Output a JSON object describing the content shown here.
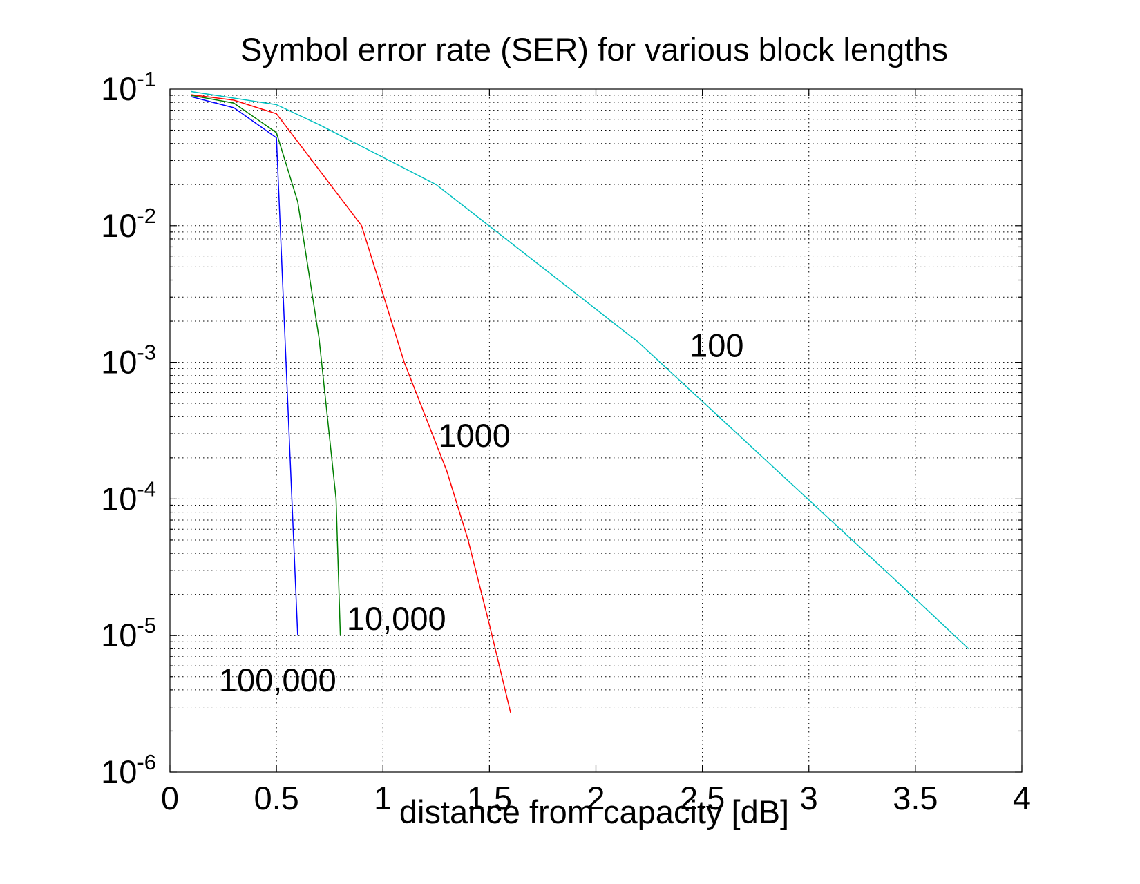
{
  "chart_data": {
    "type": "line",
    "title": "Symbol error rate (SER) for various block lengths",
    "xlabel": "distance from capacity [dB]",
    "ylabel": "",
    "xlim": [
      0,
      4
    ],
    "ylim": [
      1e-06,
      0.1
    ],
    "yscale": "log",
    "grid": true,
    "x_ticks": [
      0,
      0.5,
      1,
      1.5,
      2,
      2.5,
      3,
      3.5,
      4
    ],
    "x_tick_labels": [
      "0",
      "0.5",
      "1",
      "1.5",
      "2",
      "2.5",
      "3",
      "3.5",
      "4"
    ],
    "y_ticks": [
      {
        "value": 0.1,
        "base": "10",
        "exp": "-1"
      },
      {
        "value": 0.01,
        "base": "10",
        "exp": "-2"
      },
      {
        "value": 0.001,
        "base": "10",
        "exp": "-3"
      },
      {
        "value": 0.0001,
        "base": "10",
        "exp": "-4"
      },
      {
        "value": 1e-05,
        "base": "10",
        "exp": "-5"
      },
      {
        "value": 1e-06,
        "base": "10",
        "exp": "-6"
      }
    ],
    "series": [
      {
        "name": "100,000",
        "color": "#0000ff",
        "x": [
          0.1,
          0.3,
          0.5,
          0.6
        ],
        "y": [
          0.088,
          0.073,
          0.044,
          1e-05
        ]
      },
      {
        "name": "10,000",
        "color": "#007f00",
        "x": [
          0.1,
          0.3,
          0.5,
          0.6,
          0.7,
          0.78,
          0.8
        ],
        "y": [
          0.09,
          0.079,
          0.048,
          0.015,
          0.0015,
          0.0001,
          1e-05
        ]
      },
      {
        "name": "1000",
        "color": "#ff0000",
        "x": [
          0.1,
          0.3,
          0.5,
          0.9,
          1.1,
          1.3,
          1.4,
          1.5,
          1.6
        ],
        "y": [
          0.091,
          0.083,
          0.066,
          0.01,
          0.001,
          0.00016,
          5e-05,
          1.2e-05,
          2.7e-06
        ]
      },
      {
        "name": "100",
        "color": "#00bfbf",
        "x": [
          0.1,
          0.5,
          0.7,
          1.25,
          2.2,
          3.4,
          3.75
        ],
        "y": [
          0.096,
          0.077,
          0.055,
          0.02,
          0.0014,
          2.6e-05,
          8e-06
        ]
      }
    ],
    "annotations": [
      {
        "text": "100",
        "x": 2.44,
        "y": 0.0011
      },
      {
        "text": "1000",
        "x": 1.26,
        "y": 0.00024
      },
      {
        "text": "10,000",
        "x": 0.83,
        "y": 1.1e-05
      },
      {
        "text": "100,000",
        "x": 0.23,
        "y": 3.9e-06
      }
    ]
  }
}
